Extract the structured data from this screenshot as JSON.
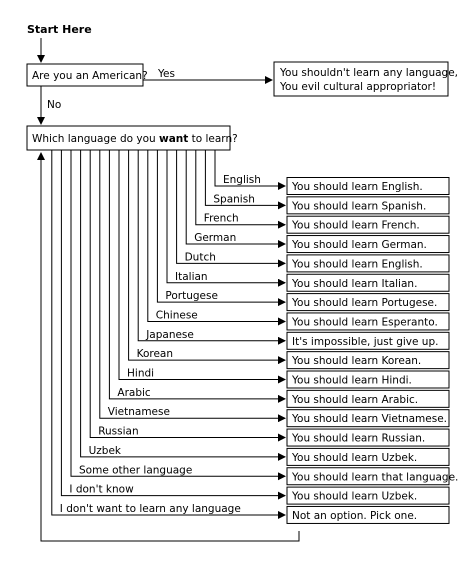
{
  "start": "Start Here",
  "q1": {
    "text": "Are you an American?",
    "yes": "Yes",
    "no": "No"
  },
  "yes_result": [
    "You shouldn't learn any language,",
    "You evil cultural appropriator!"
  ],
  "q2": {
    "prefix": "Which language do you ",
    "emph": "want",
    "suffix": " to learn?"
  },
  "branches": [
    {
      "label": "English",
      "result": "You should learn English."
    },
    {
      "label": "Spanish",
      "result": "You should learn Spanish."
    },
    {
      "label": "French",
      "result": "You should learn French."
    },
    {
      "label": "German",
      "result": "You should learn German."
    },
    {
      "label": "Dutch",
      "result": "You should learn English."
    },
    {
      "label": "Italian",
      "result": "You should learn Italian."
    },
    {
      "label": "Portugese",
      "result": "You should learn Portugese."
    },
    {
      "label": "Chinese",
      "result": "You should learn Esperanto."
    },
    {
      "label": "Japanese",
      "result": "It's impossible, just give up."
    },
    {
      "label": "Korean",
      "result": "You should learn Korean."
    },
    {
      "label": "Hindi",
      "result": "You should learn Hindi."
    },
    {
      "label": "Arabic",
      "result": "You should learn Arabic."
    },
    {
      "label": "Vietnamese",
      "result": "You should learn Vietnamese."
    },
    {
      "label": "Russian",
      "result": "You should learn Russian."
    },
    {
      "label": "Uzbek",
      "result": "You should learn Uzbek."
    },
    {
      "label": "Some other language",
      "result": "You should learn that language."
    },
    {
      "label": "I don't know",
      "result": "You should learn Uzbek."
    },
    {
      "label": "I don't want to learn any language",
      "result": "Not an option. Pick one."
    }
  ]
}
